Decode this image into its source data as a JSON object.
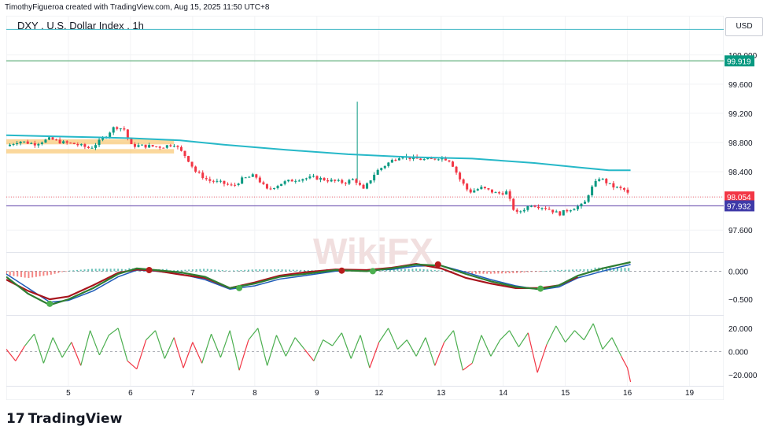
{
  "attribution": "TimothyFigueroa created with TradingView.com, Aug 15, 2025 11:50 UTC+8",
  "footer_brand": "TradingView",
  "watermark": "WikiFX",
  "chart_data": {
    "type": "line",
    "title": "DXY . U.S. Dollar Index . 1h",
    "currency": "USD",
    "price_panel": {
      "ylim": [
        97.3,
        100.3
      ],
      "y_ticks": [
        "100.000",
        "99.919",
        "99.600",
        "99.200",
        "98.800",
        "98.400",
        "98.054",
        "97.932",
        "97.600"
      ],
      "y_tick_values": [
        100.0,
        99.919,
        99.6,
        99.2,
        98.8,
        98.4,
        98.054,
        97.932,
        97.6
      ],
      "price_labels": [
        {
          "text": "99.919",
          "value": 99.919,
          "color": "#089981"
        },
        {
          "text": "98.054",
          "value": 98.054,
          "color": "#f23645"
        },
        {
          "text": "97.932",
          "value": 97.932,
          "color": "#3f3aa8"
        }
      ],
      "horizontal_lines": [
        {
          "value": 99.919,
          "color": "#3d9d5c"
        },
        {
          "value": 97.932,
          "color": "#5d3fa8"
        },
        {
          "value": 100.35,
          "color": "#3fb7c4"
        }
      ],
      "zones": [
        {
          "from": 98.845,
          "to": 98.775,
          "color": "#f7b84a"
        },
        {
          "from": 98.71,
          "to": 98.65,
          "color": "#f7b84a"
        }
      ],
      "price_path": [
        [
          4.0,
          98.75
        ],
        [
          4.2,
          98.82
        ],
        [
          4.45,
          98.78
        ],
        [
          4.7,
          98.85
        ],
        [
          4.9,
          98.8
        ],
        [
          5.1,
          98.78
        ],
        [
          5.35,
          98.72
        ],
        [
          5.55,
          98.85
        ],
        [
          5.75,
          99.02
        ],
        [
          5.9,
          98.98
        ],
        [
          6.0,
          98.76
        ],
        [
          6.3,
          98.75
        ],
        [
          6.5,
          98.74
        ],
        [
          6.7,
          98.78
        ],
        [
          6.9,
          98.6
        ],
        [
          7.05,
          98.4
        ],
        [
          7.25,
          98.28
        ],
        [
          7.45,
          98.25
        ],
        [
          7.65,
          98.2
        ],
        [
          7.8,
          98.3
        ],
        [
          8.0,
          98.35
        ],
        [
          8.2,
          98.15
        ],
        [
          8.45,
          98.25
        ],
        [
          8.7,
          98.3
        ],
        [
          8.95,
          98.32
        ],
        [
          9.2,
          98.28
        ],
        [
          9.45,
          98.25
        ],
        [
          9.6,
          98.3
        ],
        [
          9.75,
          98.15
        ],
        [
          9.95,
          98.4
        ],
        [
          10.2,
          98.55
        ],
        [
          10.35,
          98.62
        ],
        [
          10.55,
          98.58
        ],
        [
          10.8,
          98.56
        ],
        [
          11.0,
          98.6
        ],
        [
          11.15,
          98.55
        ],
        [
          11.3,
          98.3
        ],
        [
          11.45,
          98.12
        ],
        [
          11.65,
          98.18
        ],
        [
          11.9,
          98.1
        ],
        [
          12.05,
          98.12
        ],
        [
          12.2,
          97.82
        ],
        [
          12.45,
          97.95
        ],
        [
          12.7,
          97.9
        ],
        [
          12.9,
          97.82
        ],
        [
          13.05,
          97.88
        ],
        [
          13.3,
          97.95
        ],
        [
          13.4,
          98.15
        ],
        [
          13.55,
          98.32
        ],
        [
          13.75,
          98.2
        ],
        [
          13.95,
          98.15
        ],
        [
          14.05,
          98.06
        ]
      ],
      "ma": {
        "color": "#26b8c8",
        "points": [
          [
            4.0,
            98.9
          ],
          [
            5.0,
            98.88
          ],
          [
            6.0,
            98.86
          ],
          [
            6.8,
            98.83
          ],
          [
            7.5,
            98.77
          ],
          [
            8.5,
            98.7
          ],
          [
            9.5,
            98.64
          ],
          [
            10.5,
            98.6
          ],
          [
            11.5,
            98.58
          ],
          [
            12.5,
            98.52
          ],
          [
            13.2,
            98.46
          ],
          [
            13.7,
            98.42
          ],
          [
            14.05,
            98.42
          ]
        ]
      },
      "spike": {
        "x": 9.65,
        "high": 99.36,
        "low": 98.25
      }
    },
    "x_ticks": [
      {
        "label": "5",
        "x": 5
      },
      {
        "label": "6",
        "x": 6
      },
      {
        "label": "7",
        "x": 7
      },
      {
        "label": "8",
        "x": 8
      },
      {
        "label": "9",
        "x": 9
      },
      {
        "label": "12",
        "x": 10
      },
      {
        "label": "13",
        "x": 11
      },
      {
        "label": "14",
        "x": 12
      },
      {
        "label": "15",
        "x": 13
      },
      {
        "label": "16",
        "x": 14
      },
      {
        "label": "19",
        "x": 15
      }
    ],
    "xlim": [
      4.0,
      15.55
    ],
    "macd_panel": {
      "ylim": [
        -0.75,
        0.3
      ],
      "y_ticks": [
        "0.000",
        "−0.500"
      ],
      "y_tick_values": [
        0.0,
        -0.5
      ],
      "macd_line": {
        "color": "#2e7d32",
        "points": [
          [
            4.0,
            -0.1
          ],
          [
            4.35,
            -0.4
          ],
          [
            4.7,
            -0.6
          ],
          [
            5.0,
            -0.5
          ],
          [
            5.4,
            -0.3
          ],
          [
            5.8,
            -0.05
          ],
          [
            6.1,
            0.05
          ],
          [
            6.4,
            0.02
          ],
          [
            6.8,
            -0.02
          ],
          [
            7.2,
            -0.1
          ],
          [
            7.6,
            -0.3
          ],
          [
            8.0,
            -0.22
          ],
          [
            8.4,
            -0.1
          ],
          [
            8.8,
            -0.05
          ],
          [
            9.3,
            0.02
          ],
          [
            9.8,
            0.0
          ],
          [
            10.2,
            0.05
          ],
          [
            10.6,
            0.12
          ],
          [
            11.0,
            0.1
          ],
          [
            11.4,
            -0.05
          ],
          [
            11.8,
            -0.18
          ],
          [
            12.2,
            -0.28
          ],
          [
            12.6,
            -0.32
          ],
          [
            12.9,
            -0.25
          ],
          [
            13.2,
            -0.08
          ],
          [
            13.6,
            0.05
          ],
          [
            14.05,
            0.16
          ]
        ]
      },
      "signal_line": {
        "color": "#1e5bb8",
        "points": [
          [
            4.0,
            -0.05
          ],
          [
            4.35,
            -0.3
          ],
          [
            4.7,
            -0.55
          ],
          [
            5.0,
            -0.52
          ],
          [
            5.4,
            -0.35
          ],
          [
            5.8,
            -0.1
          ],
          [
            6.1,
            0.02
          ],
          [
            6.4,
            0.0
          ],
          [
            6.8,
            -0.05
          ],
          [
            7.2,
            -0.15
          ],
          [
            7.6,
            -0.32
          ],
          [
            8.0,
            -0.26
          ],
          [
            8.4,
            -0.14
          ],
          [
            8.8,
            -0.08
          ],
          [
            9.3,
            0.0
          ],
          [
            9.8,
            0.02
          ],
          [
            10.2,
            0.03
          ],
          [
            10.6,
            0.09
          ],
          [
            11.0,
            0.1
          ],
          [
            11.4,
            -0.02
          ],
          [
            11.8,
            -0.15
          ],
          [
            12.2,
            -0.26
          ],
          [
            12.6,
            -0.33
          ],
          [
            12.9,
            -0.28
          ],
          [
            13.2,
            -0.12
          ],
          [
            13.6,
            0.0
          ],
          [
            14.05,
            0.12
          ]
        ]
      },
      "red_line": {
        "color": "#a8141c",
        "points": [
          [
            4.0,
            -0.15
          ],
          [
            4.35,
            -0.35
          ],
          [
            4.7,
            -0.5
          ],
          [
            5.0,
            -0.45
          ],
          [
            5.4,
            -0.25
          ],
          [
            5.8,
            -0.03
          ],
          [
            6.1,
            0.03
          ],
          [
            6.4,
            0.01
          ],
          [
            6.8,
            -0.06
          ],
          [
            7.2,
            -0.12
          ],
          [
            7.6,
            -0.3
          ],
          [
            8.0,
            -0.2
          ],
          [
            8.4,
            -0.08
          ],
          [
            8.8,
            -0.02
          ],
          [
            9.3,
            0.03
          ],
          [
            9.8,
            0.02
          ],
          [
            10.2,
            0.06
          ],
          [
            10.6,
            0.13
          ],
          [
            11.0,
            0.05
          ],
          [
            11.4,
            -0.12
          ],
          [
            11.8,
            -0.22
          ],
          [
            12.2,
            -0.3
          ],
          [
            12.6,
            -0.3
          ],
          [
            12.9,
            -0.25
          ],
          [
            13.2,
            -0.1
          ]
        ]
      },
      "cross_markers": [
        {
          "x": 4.7,
          "value": -0.58,
          "color": "#4caf50"
        },
        {
          "x": 6.3,
          "value": 0.02,
          "color": "#b71c1c"
        },
        {
          "x": 7.75,
          "value": -0.3,
          "color": "#4caf50"
        },
        {
          "x": 9.4,
          "value": 0.01,
          "color": "#b71c1c"
        },
        {
          "x": 9.9,
          "value": 0.0,
          "color": "#4caf50"
        },
        {
          "x": 10.95,
          "value": 0.12,
          "color": "#b71c1c"
        },
        {
          "x": 12.6,
          "value": -0.31,
          "color": "#4caf50"
        }
      ]
    },
    "osc_panel": {
      "ylim": [
        -28,
        30
      ],
      "y_ticks": [
        "20.000",
        "0.000",
        "−20.000"
      ],
      "y_tick_values": [
        20,
        0,
        -20
      ],
      "upper_color": "#4caf50",
      "lower_color": "#f23645",
      "values": [
        [
          4.0,
          2
        ],
        [
          4.15,
          -8
        ],
        [
          4.3,
          5
        ],
        [
          4.45,
          15
        ],
        [
          4.6,
          -10
        ],
        [
          4.75,
          12
        ],
        [
          4.9,
          -5
        ],
        [
          5.05,
          8
        ],
        [
          5.2,
          -12
        ],
        [
          5.35,
          18
        ],
        [
          5.5,
          -3
        ],
        [
          5.65,
          14
        ],
        [
          5.8,
          20
        ],
        [
          5.95,
          -8
        ],
        [
          6.1,
          -15
        ],
        [
          6.25,
          10
        ],
        [
          6.4,
          18
        ],
        [
          6.55,
          -6
        ],
        [
          6.7,
          12
        ],
        [
          6.85,
          -14
        ],
        [
          7.0,
          8
        ],
        [
          7.15,
          -10
        ],
        [
          7.3,
          15
        ],
        [
          7.45,
          -5
        ],
        [
          7.6,
          18
        ],
        [
          7.75,
          -16
        ],
        [
          7.9,
          10
        ],
        [
          8.05,
          20
        ],
        [
          8.2,
          -12
        ],
        [
          8.35,
          14
        ],
        [
          8.5,
          -4
        ],
        [
          8.65,
          12
        ],
        [
          8.8,
          2
        ],
        [
          8.95,
          -8
        ],
        [
          9.1,
          10
        ],
        [
          9.25,
          5
        ],
        [
          9.4,
          16
        ],
        [
          9.55,
          -6
        ],
        [
          9.7,
          14
        ],
        [
          9.85,
          -14
        ],
        [
          10.0,
          8
        ],
        [
          10.15,
          20
        ],
        [
          10.3,
          2
        ],
        [
          10.45,
          10
        ],
        [
          10.6,
          -4
        ],
        [
          10.75,
          12
        ],
        [
          10.9,
          -12
        ],
        [
          11.05,
          8
        ],
        [
          11.2,
          18
        ],
        [
          11.35,
          -16
        ],
        [
          11.5,
          -10
        ],
        [
          11.65,
          14
        ],
        [
          11.8,
          -4
        ],
        [
          11.95,
          10
        ],
        [
          12.1,
          18
        ],
        [
          12.25,
          4
        ],
        [
          12.4,
          16
        ],
        [
          12.55,
          -18
        ],
        [
          12.7,
          6
        ],
        [
          12.85,
          22
        ],
        [
          13.0,
          8
        ],
        [
          13.15,
          18
        ],
        [
          13.3,
          10
        ],
        [
          13.45,
          24
        ],
        [
          13.6,
          2
        ],
        [
          13.75,
          12
        ],
        [
          13.9,
          -4
        ],
        [
          14.0,
          -14
        ],
        [
          14.05,
          -26
        ]
      ]
    }
  }
}
